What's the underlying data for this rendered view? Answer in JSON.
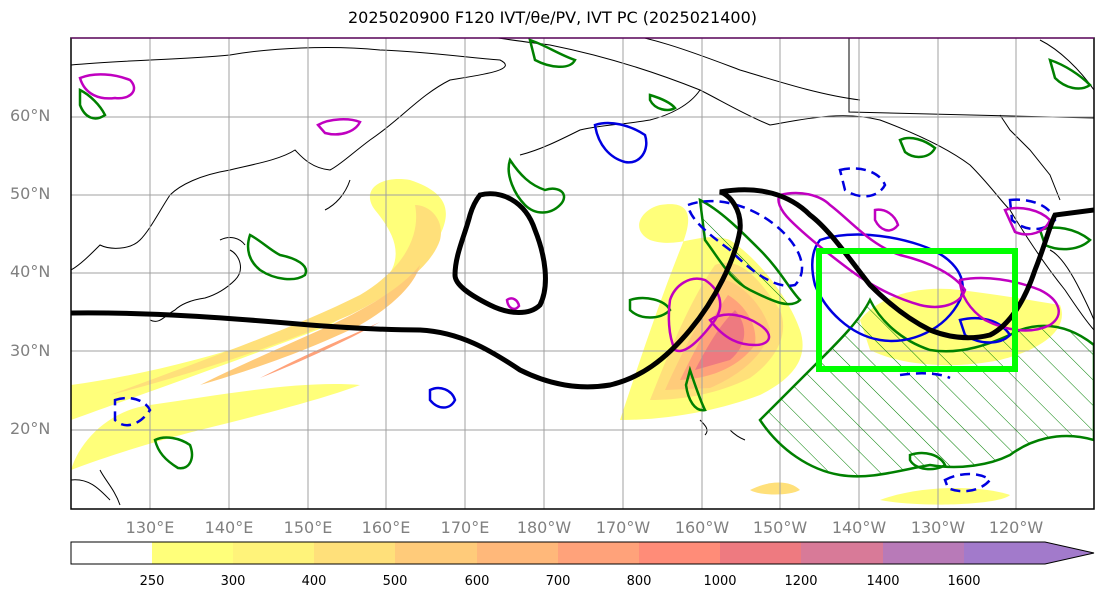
{
  "title": "2025020900 F120 IVT/θe/PV, IVT PC (2025021400)",
  "map": {
    "lat_labels": [
      "60°N",
      "50°N",
      "40°N",
      "30°N",
      "20°N"
    ],
    "lon_labels": [
      "130°E",
      "140°E",
      "150°E",
      "160°E",
      "170°E",
      "180°W",
      "170°W",
      "160°W",
      "150°W",
      "140°W",
      "130°W",
      "120°W"
    ],
    "colors": {
      "ocean": "#ffffff",
      "coast": "#000000",
      "grid": "#a0a0a0",
      "theta_e_contour": "#000000",
      "pv_contour": "#c000c0",
      "ivt_pc_positive": "#008000",
      "ivt_pc_negative": "#0000e0",
      "target_box": "#00ff00"
    }
  },
  "colorbar": {
    "levels": [
      "250",
      "300",
      "400",
      "500",
      "600",
      "700",
      "800",
      "1000",
      "1200",
      "1400",
      "1600"
    ],
    "colors": [
      "#ffffff",
      "#ffff7a",
      "#fff37a",
      "#ffe07a",
      "#ffcb7a",
      "#ffb87a",
      "#ffa27a",
      "#ff8c78",
      "#ee7a80",
      "#d87a98",
      "#b87ab8",
      "#a27acb"
    ]
  }
}
